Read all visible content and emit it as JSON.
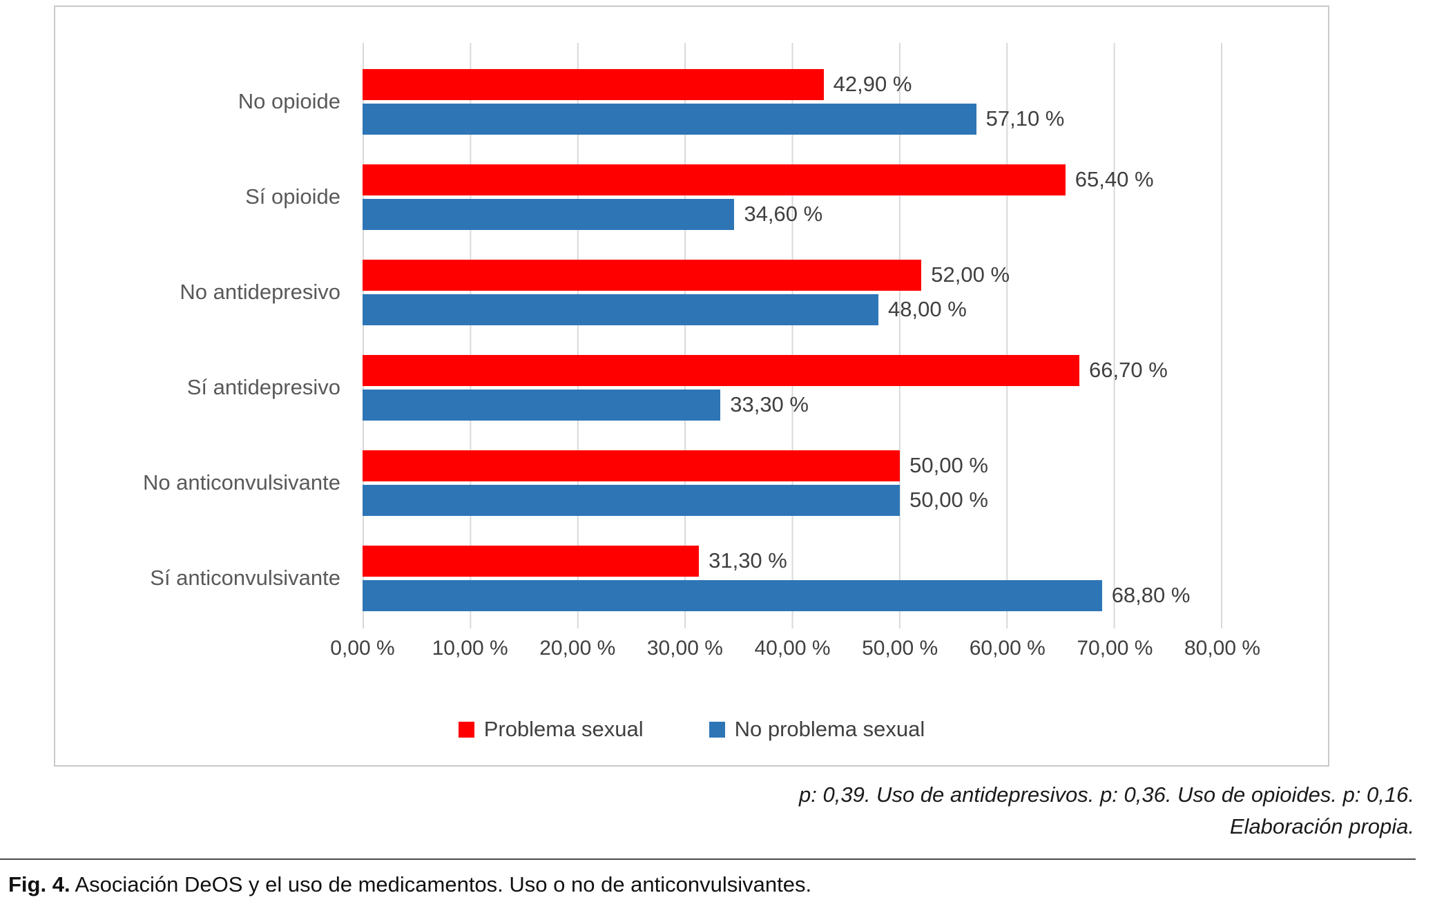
{
  "chart_data": {
    "type": "bar",
    "orientation": "horizontal",
    "title": "",
    "categories": [
      "No opioide",
      "Sí opioide",
      "No antidepresivo",
      "Sí antidepresivo",
      "No anticonvulsivante",
      "Sí anticonvulsivante"
    ],
    "series": [
      {
        "name": "Problema sexual",
        "color": "#FF0000",
        "values": [
          42.9,
          65.4,
          52.0,
          66.7,
          50.0,
          31.3
        ],
        "labels": [
          "42,90 %",
          "65,40 %",
          "52,00 %",
          "66,70 %",
          "50,00 %",
          "31,30 %"
        ]
      },
      {
        "name": "No problema sexual",
        "color": "#2E75B6",
        "values": [
          57.1,
          34.6,
          48.0,
          33.3,
          50.0,
          68.8
        ],
        "labels": [
          "57,10 %",
          "34,60 %",
          "48,00 %",
          "33,30 %",
          "50,00 %",
          "68,80 %"
        ]
      }
    ],
    "xlim": [
      0,
      80
    ],
    "x_ticks": [
      "0,00 %",
      "10,00 %",
      "20,00 %",
      "30,00 %",
      "40,00 %",
      "50,00 %",
      "60,00 %",
      "70,00 %",
      "80,00 %"
    ],
    "grid": true,
    "legend_position": "bottom"
  },
  "notes": {
    "line1": "p: 0,39. Uso de antidepresivos. p: 0,36. Uso de opioides. p: 0,16.",
    "line2": "Elaboración propia."
  },
  "caption": {
    "prefix": "Fig. 4.",
    "text": "Asociación DeOS y el uso de medicamentos. Uso o no de anticonvulsivantes."
  }
}
